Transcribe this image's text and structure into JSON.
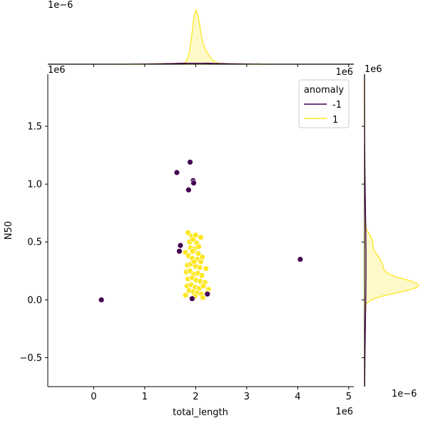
{
  "chart_data": {
    "type": "scatter",
    "subtype": "jointplot",
    "xlabel": "total_length",
    "ylabel": "N50",
    "x_offset_label": "1e6",
    "y_offset_label": "1e6",
    "x_ticks": [
      0,
      1,
      2,
      3,
      4,
      5
    ],
    "y_ticks": [
      -0.5,
      0.0,
      0.5,
      1.0,
      1.5
    ],
    "x_tick_labels": [
      "0",
      "1",
      "2",
      "3",
      "4",
      "5"
    ],
    "y_tick_labels": [
      "−0.5",
      "0.0",
      "0.5",
      "1.0",
      "1.5"
    ],
    "xlim": [
      -0.9,
      5.1
    ],
    "ylim": [
      -0.75,
      1.95
    ],
    "grid": false,
    "legend": {
      "title": "anomaly",
      "placement": "upper right",
      "entries": [
        {
          "label": "-1",
          "color": "#440154"
        },
        {
          "label": "1",
          "color": "#fde725"
        }
      ]
    },
    "series": [
      {
        "name": "-1",
        "color": "#440154",
        "points": [
          {
            "x": 0.15,
            "y": 0.0
          },
          {
            "x": 1.63,
            "y": 1.1
          },
          {
            "x": 1.89,
            "y": 1.19
          },
          {
            "x": 1.95,
            "y": 1.03
          },
          {
            "x": 1.96,
            "y": 1.01
          },
          {
            "x": 1.86,
            "y": 0.95
          },
          {
            "x": 1.7,
            "y": 0.47
          },
          {
            "x": 1.68,
            "y": 0.42
          },
          {
            "x": 4.05,
            "y": 0.35
          },
          {
            "x": 1.93,
            "y": 0.01
          },
          {
            "x": 2.23,
            "y": 0.05
          }
        ]
      },
      {
        "name": "1",
        "color": "#fde725",
        "points": [
          {
            "x": 1.85,
            "y": 0.58
          },
          {
            "x": 1.92,
            "y": 0.55
          },
          {
            "x": 2.0,
            "y": 0.56
          },
          {
            "x": 2.1,
            "y": 0.54
          },
          {
            "x": 1.88,
            "y": 0.5
          },
          {
            "x": 1.95,
            "y": 0.52
          },
          {
            "x": 2.02,
            "y": 0.49
          },
          {
            "x": 1.8,
            "y": 0.41
          },
          {
            "x": 1.9,
            "y": 0.45
          },
          {
            "x": 1.98,
            "y": 0.44
          },
          {
            "x": 2.05,
            "y": 0.4
          },
          {
            "x": 1.86,
            "y": 0.38
          },
          {
            "x": 1.93,
            "y": 0.36
          },
          {
            "x": 2.03,
            "y": 0.35
          },
          {
            "x": 2.1,
            "y": 0.33
          },
          {
            "x": 1.84,
            "y": 0.3
          },
          {
            "x": 1.91,
            "y": 0.31
          },
          {
            "x": 2.0,
            "y": 0.29
          },
          {
            "x": 2.08,
            "y": 0.28
          },
          {
            "x": 2.2,
            "y": 0.27
          },
          {
            "x": 1.82,
            "y": 0.24
          },
          {
            "x": 1.89,
            "y": 0.25
          },
          {
            "x": 1.96,
            "y": 0.22
          },
          {
            "x": 2.04,
            "y": 0.23
          },
          {
            "x": 2.12,
            "y": 0.21
          },
          {
            "x": 1.85,
            "y": 0.18
          },
          {
            "x": 1.93,
            "y": 0.19
          },
          {
            "x": 2.01,
            "y": 0.17
          },
          {
            "x": 2.09,
            "y": 0.16
          },
          {
            "x": 2.18,
            "y": 0.15
          },
          {
            "x": 1.83,
            "y": 0.12
          },
          {
            "x": 1.91,
            "y": 0.13
          },
          {
            "x": 1.99,
            "y": 0.11
          },
          {
            "x": 2.07,
            "y": 0.1
          },
          {
            "x": 2.15,
            "y": 0.12
          },
          {
            "x": 2.25,
            "y": 0.09
          },
          {
            "x": 1.87,
            "y": 0.08
          },
          {
            "x": 1.95,
            "y": 0.07
          },
          {
            "x": 2.03,
            "y": 0.06
          },
          {
            "x": 2.11,
            "y": 0.05
          },
          {
            "x": 1.8,
            "y": 0.04
          },
          {
            "x": 1.98,
            "y": 0.03
          },
          {
            "x": 2.14,
            "y": 0.02
          },
          {
            "x": 2.22,
            "y": 0.06
          },
          {
            "x": 1.94,
            "y": 0.42
          },
          {
            "x": 2.06,
            "y": 0.46
          },
          {
            "x": 1.97,
            "y": 0.33
          },
          {
            "x": 2.13,
            "y": 0.37
          }
        ]
      }
    ],
    "marginal_x_offset_label": "1e−6",
    "marginal_y_offset_label": "1e−6",
    "marginal_x_peak": 2.0,
    "marginal_y_peak": 0.12
  }
}
